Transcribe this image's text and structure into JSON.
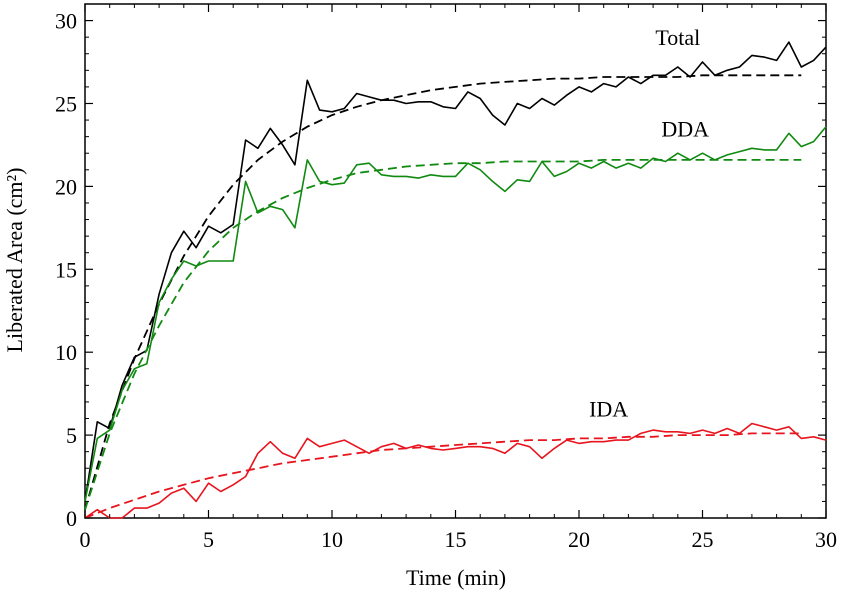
{
  "chart_data": {
    "type": "line",
    "title": "",
    "xlabel": "Time (min)",
    "ylabel": "Liberated Area (cm²)",
    "xlim": [
      0,
      30
    ],
    "ylim": [
      0,
      31
    ],
    "xticks": [
      0,
      5,
      10,
      15,
      20,
      25,
      30
    ],
    "yticks": [
      0,
      5,
      10,
      15,
      20,
      25,
      30
    ],
    "xtick_labels": [
      "0",
      "5",
      "10",
      "15",
      "20",
      "25",
      "30"
    ],
    "ytick_labels": [
      "0",
      "5",
      "10",
      "15",
      "20",
      "25",
      "30"
    ],
    "grid": false,
    "series": [
      {
        "name": "Total",
        "label": "Total",
        "color": "#000000",
        "label_at": [
          24,
          29
        ],
        "measured": {
          "x": [
            0,
            0.5,
            1,
            1.5,
            2,
            2.5,
            3,
            3.5,
            4,
            4.5,
            5,
            5.5,
            6,
            6.5,
            7,
            7.5,
            8,
            8.5,
            9,
            9.5,
            10,
            10.5,
            11,
            11.5,
            12,
            12.5,
            13,
            13.5,
            14,
            14.5,
            15,
            15.5,
            16,
            16.5,
            17,
            17.5,
            18,
            18.5,
            19,
            19.5,
            20,
            20.5,
            21,
            21.5,
            22,
            22.5,
            23,
            23.5,
            24,
            24.5,
            25,
            25.5,
            26,
            26.5,
            27,
            27.5,
            28,
            28.5,
            29,
            29.5,
            30
          ],
          "y": [
            1,
            5.8,
            5.4,
            8,
            9.7,
            10.1,
            13.5,
            16,
            17.3,
            16.3,
            17.6,
            17.2,
            17.7,
            22.8,
            22.3,
            23.5,
            22.5,
            21.3,
            26.4,
            24.6,
            24.5,
            24.7,
            25.6,
            25.4,
            25.2,
            25.2,
            25,
            25.1,
            25.1,
            24.8,
            24.7,
            25.7,
            25.3,
            24.3,
            23.7,
            25,
            24.7,
            25.3,
            24.9,
            25.5,
            26,
            25.7,
            26.2,
            26,
            26.6,
            26.2,
            26.7,
            26.7,
            27.2,
            26.6,
            27.5,
            26.7,
            27,
            27.2,
            27.9,
            27.8,
            27.6,
            28.7,
            27.2,
            27.6,
            28.4
          ]
        },
        "fit": {
          "x": [
            0,
            1,
            2,
            3,
            4,
            5,
            6,
            7,
            8,
            9,
            10,
            11,
            12,
            13,
            14,
            15,
            16,
            17,
            18,
            19,
            20,
            21,
            22,
            23,
            24,
            25,
            26,
            27,
            28,
            29
          ],
          "y": [
            0.5,
            5.7,
            9.6,
            12.9,
            15.8,
            18.2,
            20.1,
            21.6,
            22.7,
            23.6,
            24.3,
            24.8,
            25.2,
            25.5,
            25.8,
            26,
            26.2,
            26.3,
            26.4,
            26.5,
            26.5,
            26.6,
            26.6,
            26.6,
            26.6,
            26.7,
            26.7,
            26.7,
            26.7,
            26.7
          ]
        }
      },
      {
        "name": "DDA",
        "label": "DDA",
        "color": "#118a11",
        "label_at": [
          24.3,
          23.5
        ],
        "measured": {
          "x": [
            0,
            0.5,
            1,
            1.5,
            2,
            2.5,
            3,
            3.5,
            4,
            4.5,
            5,
            5.5,
            6,
            6.5,
            7,
            7.5,
            8,
            8.5,
            9,
            9.5,
            10,
            10.5,
            11,
            11.5,
            12,
            12.5,
            13,
            13.5,
            14,
            14.5,
            15,
            15.5,
            16,
            16.5,
            17,
            17.5,
            18,
            18.5,
            19,
            19.5,
            20,
            20.5,
            21,
            21.5,
            22,
            22.5,
            23,
            23.5,
            24,
            24.5,
            25,
            25.5,
            26,
            26.5,
            27,
            27.5,
            28,
            28.5,
            29,
            29.5,
            30
          ],
          "y": [
            1,
            4.8,
            5.3,
            7.7,
            9,
            9.3,
            13,
            14.4,
            15.5,
            15.2,
            15.5,
            15.5,
            15.5,
            20.3,
            18.4,
            18.8,
            18.6,
            17.5,
            21.6,
            20.3,
            20.1,
            20.2,
            21.3,
            21.4,
            20.7,
            20.6,
            20.6,
            20.5,
            20.7,
            20.6,
            20.6,
            21.4,
            21,
            20.3,
            19.7,
            20.4,
            20.3,
            21.5,
            20.6,
            20.9,
            21.4,
            21.1,
            21.5,
            21.1,
            21.4,
            21.1,
            21.7,
            21.5,
            22,
            21.6,
            22,
            21.6,
            21.9,
            22.1,
            22.3,
            22.2,
            22.2,
            23.2,
            22.4,
            22.7,
            23.6
          ]
        },
        "fit": {
          "x": [
            0,
            1,
            2,
            3,
            4,
            5,
            6,
            7,
            8,
            9,
            10,
            11,
            12,
            13,
            14,
            15,
            16,
            17,
            18,
            19,
            20,
            21,
            22,
            23,
            24,
            25,
            26,
            27,
            28,
            29
          ],
          "y": [
            0.5,
            5.1,
            8.7,
            11.6,
            14.2,
            16.1,
            17.5,
            18.5,
            19.3,
            19.9,
            20.4,
            20.8,
            21,
            21.2,
            21.3,
            21.4,
            21.4,
            21.5,
            21.5,
            21.5,
            21.5,
            21.6,
            21.6,
            21.6,
            21.6,
            21.6,
            21.6,
            21.6,
            21.6,
            21.6
          ]
        }
      },
      {
        "name": "IDA",
        "label": "IDA",
        "color": "#e8141e",
        "label_at": [
          21.2,
          6.6
        ],
        "measured": {
          "x": [
            0,
            0.5,
            1,
            1.5,
            2,
            2.5,
            3,
            3.5,
            4,
            4.5,
            5,
            5.5,
            6,
            6.5,
            7,
            7.5,
            8,
            8.5,
            9,
            9.5,
            10,
            10.5,
            11,
            11.5,
            12,
            12.5,
            13,
            13.5,
            14,
            14.5,
            15,
            15.5,
            16,
            16.5,
            17,
            17.5,
            18,
            18.5,
            19,
            19.5,
            20,
            20.5,
            21,
            21.5,
            22,
            22.5,
            23,
            23.5,
            24,
            24.5,
            25,
            25.5,
            26,
            26.5,
            27,
            27.5,
            28,
            28.5,
            29,
            29.5,
            30
          ],
          "y": [
            0,
            0.5,
            0,
            0,
            0.6,
            0.6,
            0.9,
            1.5,
            1.8,
            1,
            2.1,
            1.6,
            2,
            2.5,
            3.9,
            4.6,
            3.9,
            3.6,
            4.8,
            4.3,
            4.5,
            4.7,
            4.3,
            3.9,
            4.3,
            4.5,
            4.2,
            4.4,
            4.2,
            4.1,
            4.2,
            4.3,
            4.3,
            4.2,
            3.9,
            4.5,
            4.3,
            3.6,
            4.2,
            4.7,
            4.5,
            4.6,
            4.6,
            4.7,
            4.7,
            5.1,
            5.3,
            5.2,
            5.2,
            5.1,
            5.3,
            5.1,
            5.4,
            5.1,
            5.7,
            5.5,
            5.3,
            5.5,
            4.8,
            4.9,
            4.7
          ]
        },
        "fit": {
          "x": [
            0,
            1,
            2,
            3,
            4,
            5,
            6,
            7,
            8,
            9,
            10,
            11,
            12,
            13,
            14,
            15,
            16,
            17,
            18,
            19,
            20,
            21,
            22,
            23,
            24,
            25,
            26,
            27,
            28,
            29
          ],
          "y": [
            0,
            0.6,
            1.1,
            1.6,
            2,
            2.4,
            2.7,
            3,
            3.3,
            3.5,
            3.7,
            3.9,
            4.1,
            4.2,
            4.3,
            4.4,
            4.5,
            4.6,
            4.7,
            4.7,
            4.8,
            4.8,
            4.9,
            4.9,
            5,
            5,
            5,
            5.1,
            5.1,
            5.1
          ]
        }
      }
    ]
  }
}
